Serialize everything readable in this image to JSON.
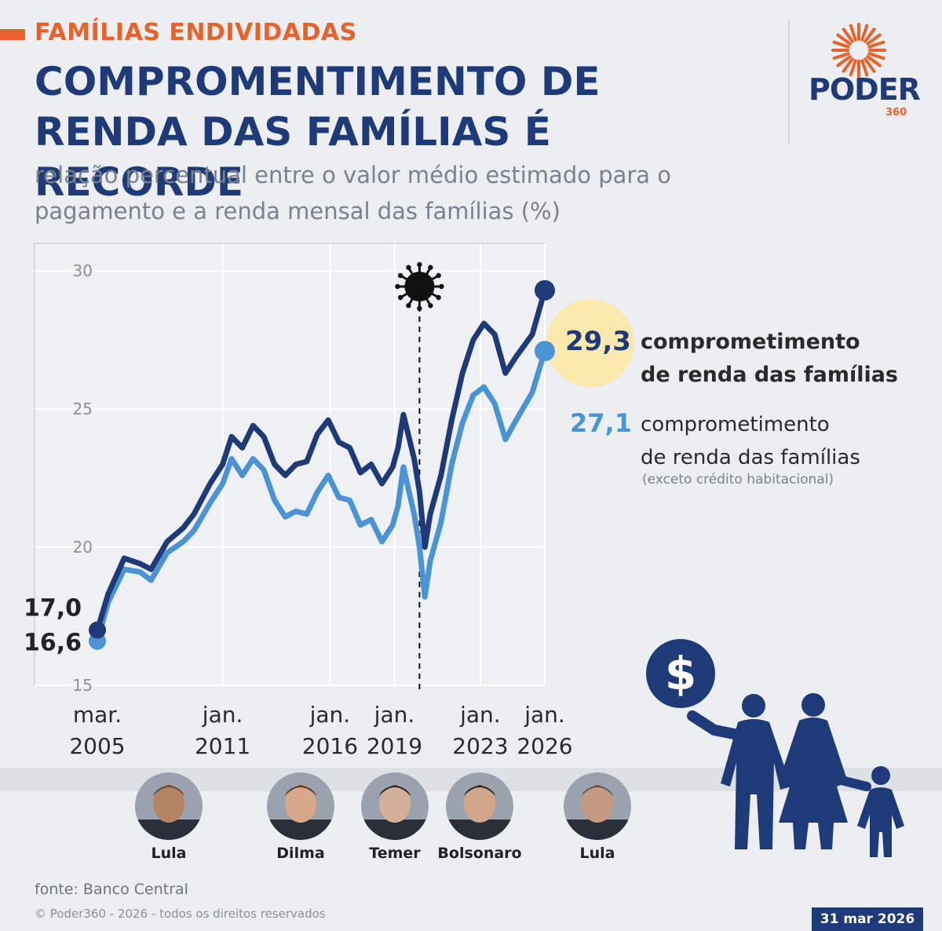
{
  "header": {
    "kicker": "FAMÍLIAS ENDIVIDADAS",
    "title": "COMPROMENTIMENTO DE RENDA DAS FAMÍLIAS É RECORDE",
    "subtitle": "relação percentual entre o valor médio estimado para o pagamento e a renda mensal das famílias (%)"
  },
  "logo": {
    "word": "PODER",
    "number": "360"
  },
  "colors": {
    "navy": "#1e3a78",
    "light_blue": "#4a94d6",
    "orange": "#e8632b",
    "highlight": "#fbe8ad"
  },
  "chart_data": {
    "type": "line",
    "ylim": [
      15,
      31
    ],
    "y_ticks": [
      "15",
      "20",
      "25",
      "30"
    ],
    "x_ticks": [
      {
        "line1": "mar.",
        "line2": "2005"
      },
      {
        "line1": "jan.",
        "line2": "2011"
      },
      {
        "line1": "jan.",
        "line2": "2016"
      },
      {
        "line1": "jan.",
        "line2": "2019"
      },
      {
        "line1": "jan.",
        "line2": "2023"
      },
      {
        "line1": "jan.",
        "line2": "2026"
      }
    ],
    "annotation": "covid-icon",
    "series": [
      {
        "name": "comprometimento de renda das famílias",
        "color": "#1e3a78",
        "first_label": "17,0",
        "last_label": "29,3",
        "points": [
          [
            "2005-03",
            17.0
          ],
          [
            "2005-09",
            18.3
          ],
          [
            "2006-06",
            19.6
          ],
          [
            "2007-03",
            19.4
          ],
          [
            "2007-09",
            19.2
          ],
          [
            "2008-06",
            20.2
          ],
          [
            "2009-03",
            20.7
          ],
          [
            "2009-09",
            21.2
          ],
          [
            "2010-06",
            22.3
          ],
          [
            "2011-01",
            23.0
          ],
          [
            "2011-06",
            24.0
          ],
          [
            "2011-12",
            23.6
          ],
          [
            "2012-06",
            24.4
          ],
          [
            "2012-12",
            24.0
          ],
          [
            "2013-06",
            23.0
          ],
          [
            "2013-12",
            22.6
          ],
          [
            "2014-06",
            23.0
          ],
          [
            "2014-12",
            23.1
          ],
          [
            "2015-06",
            24.1
          ],
          [
            "2015-12",
            24.6
          ],
          [
            "2016-06",
            23.8
          ],
          [
            "2016-12",
            23.6
          ],
          [
            "2017-06",
            22.7
          ],
          [
            "2017-12",
            23.0
          ],
          [
            "2018-06",
            22.3
          ],
          [
            "2018-12",
            22.9
          ],
          [
            "2019-03",
            23.6
          ],
          [
            "2019-06",
            24.8
          ],
          [
            "2019-12",
            23.2
          ],
          [
            "2020-03",
            22.0
          ],
          [
            "2020-06",
            20.0
          ],
          [
            "2020-09",
            21.2
          ],
          [
            "2021-03",
            22.6
          ],
          [
            "2021-09",
            24.6
          ],
          [
            "2022-03",
            26.3
          ],
          [
            "2022-09",
            27.5
          ],
          [
            "2023-03",
            28.1
          ],
          [
            "2023-09",
            27.7
          ],
          [
            "2024-03",
            26.3
          ],
          [
            "2024-09",
            26.9
          ],
          [
            "2025-06",
            27.7
          ],
          [
            "2026-01",
            29.3
          ]
        ]
      },
      {
        "name": "comprometimento de renda das famílias",
        "note": "(exceto crédito habitacional)",
        "color": "#4a94d6",
        "first_label": "16,6",
        "last_label": "27,1",
        "points": [
          [
            "2005-03",
            16.6
          ],
          [
            "2005-09",
            18.0
          ],
          [
            "2006-06",
            19.2
          ],
          [
            "2007-03",
            19.1
          ],
          [
            "2007-09",
            18.8
          ],
          [
            "2008-06",
            19.8
          ],
          [
            "2009-03",
            20.2
          ],
          [
            "2009-09",
            20.6
          ],
          [
            "2010-06",
            21.6
          ],
          [
            "2011-01",
            22.3
          ],
          [
            "2011-06",
            23.2
          ],
          [
            "2011-12",
            22.6
          ],
          [
            "2012-06",
            23.2
          ],
          [
            "2012-12",
            22.8
          ],
          [
            "2013-06",
            21.7
          ],
          [
            "2013-12",
            21.1
          ],
          [
            "2014-06",
            21.3
          ],
          [
            "2014-12",
            21.2
          ],
          [
            "2015-06",
            22.0
          ],
          [
            "2015-12",
            22.6
          ],
          [
            "2016-06",
            21.8
          ],
          [
            "2016-12",
            21.7
          ],
          [
            "2017-06",
            20.8
          ],
          [
            "2017-12",
            21.0
          ],
          [
            "2018-06",
            20.2
          ],
          [
            "2018-12",
            20.8
          ],
          [
            "2019-03",
            21.5
          ],
          [
            "2019-06",
            22.9
          ],
          [
            "2019-12",
            21.2
          ],
          [
            "2020-03",
            20.0
          ],
          [
            "2020-06",
            18.2
          ],
          [
            "2020-09",
            19.5
          ],
          [
            "2021-03",
            20.9
          ],
          [
            "2021-09",
            23.0
          ],
          [
            "2022-03",
            24.5
          ],
          [
            "2022-09",
            25.5
          ],
          [
            "2023-03",
            25.8
          ],
          [
            "2023-09",
            25.2
          ],
          [
            "2024-03",
            23.9
          ],
          [
            "2024-09",
            24.6
          ],
          [
            "2025-06",
            25.6
          ],
          [
            "2026-01",
            27.1
          ]
        ]
      }
    ]
  },
  "legend": {
    "main_value": "29,3",
    "main_line1": "comprometimento",
    "main_line2": "de renda das famílias",
    "secondary_value": "27,1",
    "secondary_line1": "comprometimento",
    "secondary_line2": "de renda das famílias",
    "secondary_note": "(exceto crédito habitacional)"
  },
  "presidents": [
    {
      "name": "Lula"
    },
    {
      "name": "Dilma"
    },
    {
      "name": "Temer"
    },
    {
      "name": "Bolsonaro"
    },
    {
      "name": "Lula"
    }
  ],
  "illustration": {
    "symbol": "$"
  },
  "footer": {
    "source": "fonte: Banco Central",
    "copyright": "© Poder360 - 2026 - todos os direitos reservados",
    "date": "31 mar 2026"
  }
}
